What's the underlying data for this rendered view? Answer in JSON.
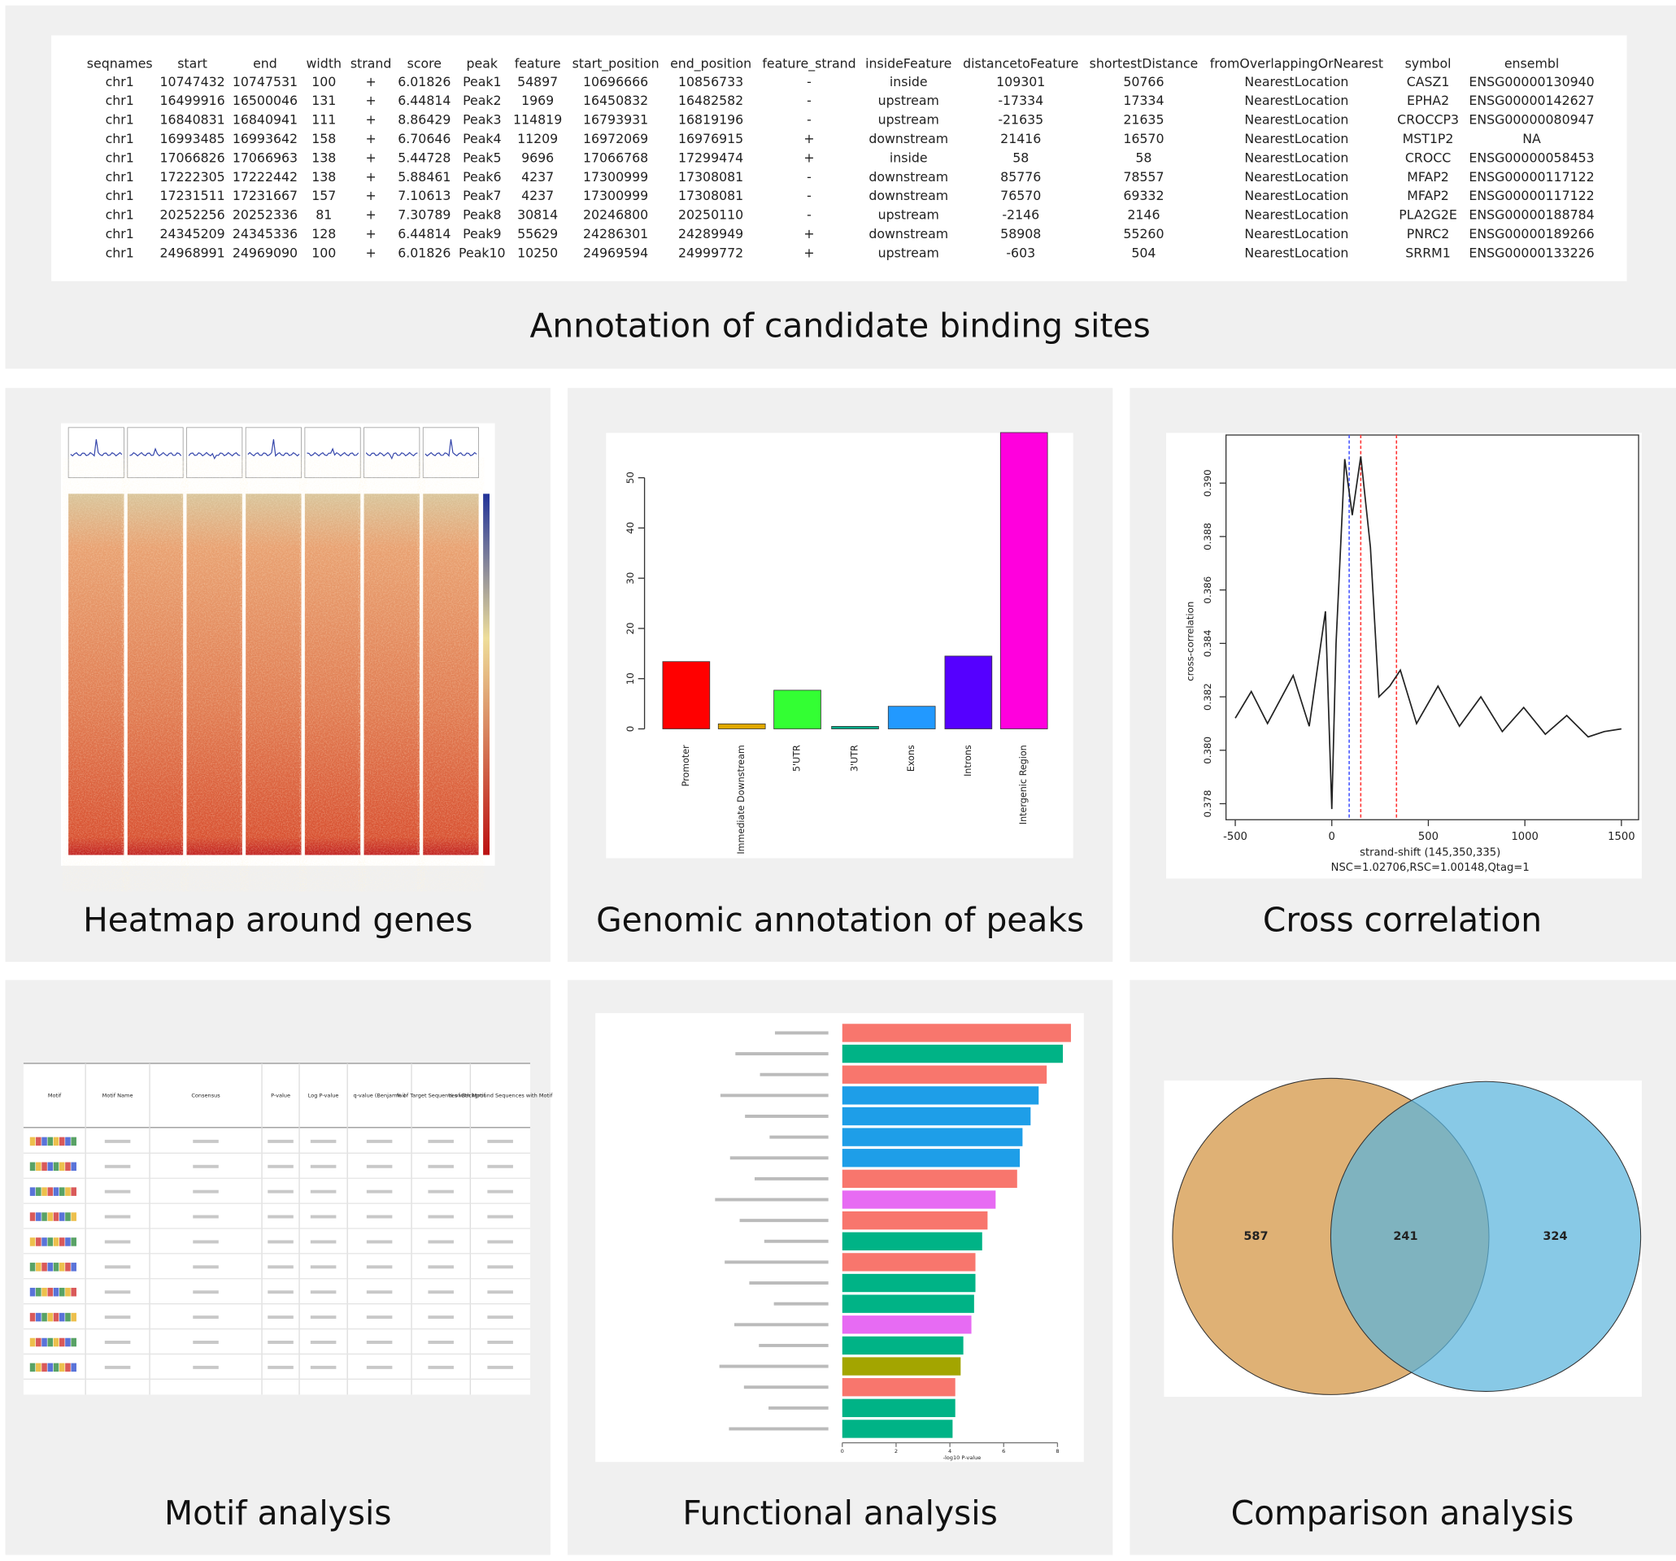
{
  "annotation_table": {
    "caption": "Annotation of candidate binding sites",
    "header": [
      "seqnames",
      "start",
      "end",
      "width",
      "strand",
      "score",
      "peak",
      "feature",
      "start_position",
      "end_position",
      "feature_strand",
      "insideFeature",
      "distancetoFeature",
      "shortestDistance",
      "fromOverlappingOrNearest",
      "symbol",
      "ensembl"
    ],
    "rows": [
      [
        "chr1",
        "10747432",
        "10747531",
        "100",
        "+",
        "6.01826",
        "Peak1",
        "54897",
        "10696666",
        "10856733",
        "-",
        "inside",
        "109301",
        "50766",
        "NearestLocation",
        "CASZ1",
        "ENSG00000130940"
      ],
      [
        "chr1",
        "16499916",
        "16500046",
        "131",
        "+",
        "6.44814",
        "Peak2",
        "1969",
        "16450832",
        "16482582",
        "-",
        "upstream",
        "-17334",
        "17334",
        "NearestLocation",
        "EPHA2",
        "ENSG00000142627"
      ],
      [
        "chr1",
        "16840831",
        "16840941",
        "111",
        "+",
        "8.86429",
        "Peak3",
        "114819",
        "16793931",
        "16819196",
        "-",
        "upstream",
        "-21635",
        "21635",
        "NearestLocation",
        "CROCCP3",
        "ENSG00000080947"
      ],
      [
        "chr1",
        "16993485",
        "16993642",
        "158",
        "+",
        "6.70646",
        "Peak4",
        "11209",
        "16972069",
        "16976915",
        "+",
        "downstream",
        "21416",
        "16570",
        "NearestLocation",
        "MST1P2",
        "NA"
      ],
      [
        "chr1",
        "17066826",
        "17066963",
        "138",
        "+",
        "5.44728",
        "Peak5",
        "9696",
        "17066768",
        "17299474",
        "+",
        "inside",
        "58",
        "58",
        "NearestLocation",
        "CROCC",
        "ENSG00000058453"
      ],
      [
        "chr1",
        "17222305",
        "17222442",
        "138",
        "+",
        "5.88461",
        "Peak6",
        "4237",
        "17300999",
        "17308081",
        "-",
        "downstream",
        "85776",
        "78557",
        "NearestLocation",
        "MFAP2",
        "ENSG00000117122"
      ],
      [
        "chr1",
        "17231511",
        "17231667",
        "157",
        "+",
        "7.10613",
        "Peak7",
        "4237",
        "17300999",
        "17308081",
        "-",
        "downstream",
        "76570",
        "69332",
        "NearestLocation",
        "MFAP2",
        "ENSG00000117122"
      ],
      [
        "chr1",
        "20252256",
        "20252336",
        "81",
        "+",
        "7.30789",
        "Peak8",
        "30814",
        "20246800",
        "20250110",
        "-",
        "upstream",
        "-2146",
        "2146",
        "NearestLocation",
        "PLA2G2E",
        "ENSG00000188784"
      ],
      [
        "chr1",
        "24345209",
        "24345336",
        "128",
        "+",
        "6.44814",
        "Peak9",
        "55629",
        "24286301",
        "24289949",
        "+",
        "downstream",
        "58908",
        "55260",
        "NearestLocation",
        "PNRC2",
        "ENSG00000189266"
      ],
      [
        "chr1",
        "24968991",
        "24969090",
        "100",
        "+",
        "6.01826",
        "Peak10",
        "10250",
        "24969594",
        "24999772",
        "+",
        "upstream",
        "-603",
        "504",
        "NearestLocation",
        "SRRM1",
        "ENSG00000133226"
      ]
    ]
  },
  "heatmap": {
    "caption": "Heatmap around genes"
  },
  "motif_table": {
    "caption": "Motif analysis",
    "header": [
      "Motif",
      "Motif Name",
      "Consensus",
      "P-value",
      "Log P-value",
      "q-value (Benjamini)",
      "% of Target Sequences with Motif",
      "% of Background Sequences with Motif"
    ]
  },
  "chart_data": [
    {
      "type": "bar",
      "caption": "Genomic annotation of peaks",
      "categories": [
        "Promoter",
        "Immediate Downstream",
        "5'UTR",
        "3'UTR",
        "Exons",
        "Introns",
        "Intergenic Region"
      ],
      "values": [
        13.4,
        1,
        7.7,
        0.5,
        4.5,
        14.5,
        59
      ],
      "colors": [
        "#ff0000",
        "#e0a800",
        "#33ff33",
        "#00aa88",
        "#2299ff",
        "#5500ff",
        "#ff00dd"
      ],
      "ylim": [
        0,
        60
      ],
      "yticks": [
        0,
        10,
        20,
        30,
        40,
        50
      ]
    },
    {
      "type": "line",
      "caption": "Cross correlation",
      "xlabel": "strand-shift (145,350,335)",
      "annotation": "NSC=1.02706,RSC=1.00148,Qtag=1",
      "ylabel": "cross-correlation",
      "x": [
        -500,
        -417,
        -333,
        -200,
        -117,
        -33,
        0,
        22,
        67,
        106,
        150,
        200,
        244,
        300,
        355,
        439,
        550,
        661,
        772,
        883,
        994,
        1106,
        1217,
        1328,
        1411,
        1500
      ],
      "series": [
        {
          "color": "#222222",
          "values": [
            0.3812,
            0.3822,
            0.381,
            0.3828,
            0.3809,
            0.3852,
            0.3778,
            0.384,
            0.3909,
            0.3888,
            0.391,
            0.3876,
            0.382,
            0.3824,
            0.383,
            0.381,
            0.3824,
            0.3809,
            0.382,
            0.3807,
            0.3816,
            0.3806,
            0.3813,
            0.3805,
            0.3807,
            0.3808
          ]
        }
      ],
      "vlines": [
        {
          "value": 90,
          "color": "#4455ff"
        },
        {
          "value": 150,
          "color": "#ff3333"
        },
        {
          "value": 335,
          "color": "#ff3333"
        }
      ],
      "xlim": [
        -548,
        1589
      ],
      "ylim": [
        0.3774,
        0.3918
      ],
      "xticks": [
        -500,
        0,
        500,
        1000,
        1500
      ],
      "yticks": [
        0.378,
        {
          "value": 0.38,
          "label": "0.380"
        },
        0.382,
        0.384,
        0.386,
        0.388,
        {
          "value": 0.39,
          "label": "0.390"
        }
      ]
    },
    {
      "type": "barh",
      "caption": "Functional analysis",
      "xlabel": "-log10 P-value",
      "categories": [
        null,
        null,
        null,
        null,
        null,
        null,
        null,
        null,
        null,
        null,
        null,
        null,
        null,
        null,
        null,
        null,
        null,
        null,
        null,
        null
      ],
      "values": [
        8.5,
        8.2,
        7.6,
        7.3,
        7,
        6.7,
        6.6,
        6.5,
        5.7,
        5.4,
        5.2,
        4.95,
        4.95,
        4.9,
        4.8,
        4.5,
        4.4,
        4.2,
        4.2,
        4.1
      ],
      "colors": [
        "#f8766d",
        "#00b386",
        "#f8766d",
        "#1e9ee8",
        "#1e9ee8",
        "#1e9ee8",
        "#1e9ee8",
        "#f8766d",
        "#e76bf3",
        "#f8766d",
        "#00b386",
        "#f8766d",
        "#00b386",
        "#00b386",
        "#e76bf3",
        "#00b386",
        "#a3a500",
        "#f8766d",
        "#00b386",
        "#00b386"
      ],
      "xlim": [
        0,
        8.9
      ],
      "xticks": [
        0,
        2,
        4,
        6,
        8
      ]
    },
    {
      "type": "venn",
      "caption": "Comparison analysis",
      "values": [
        587,
        241,
        324
      ],
      "colors": [
        "#dca866",
        "#5ab4dc"
      ]
    }
  ]
}
